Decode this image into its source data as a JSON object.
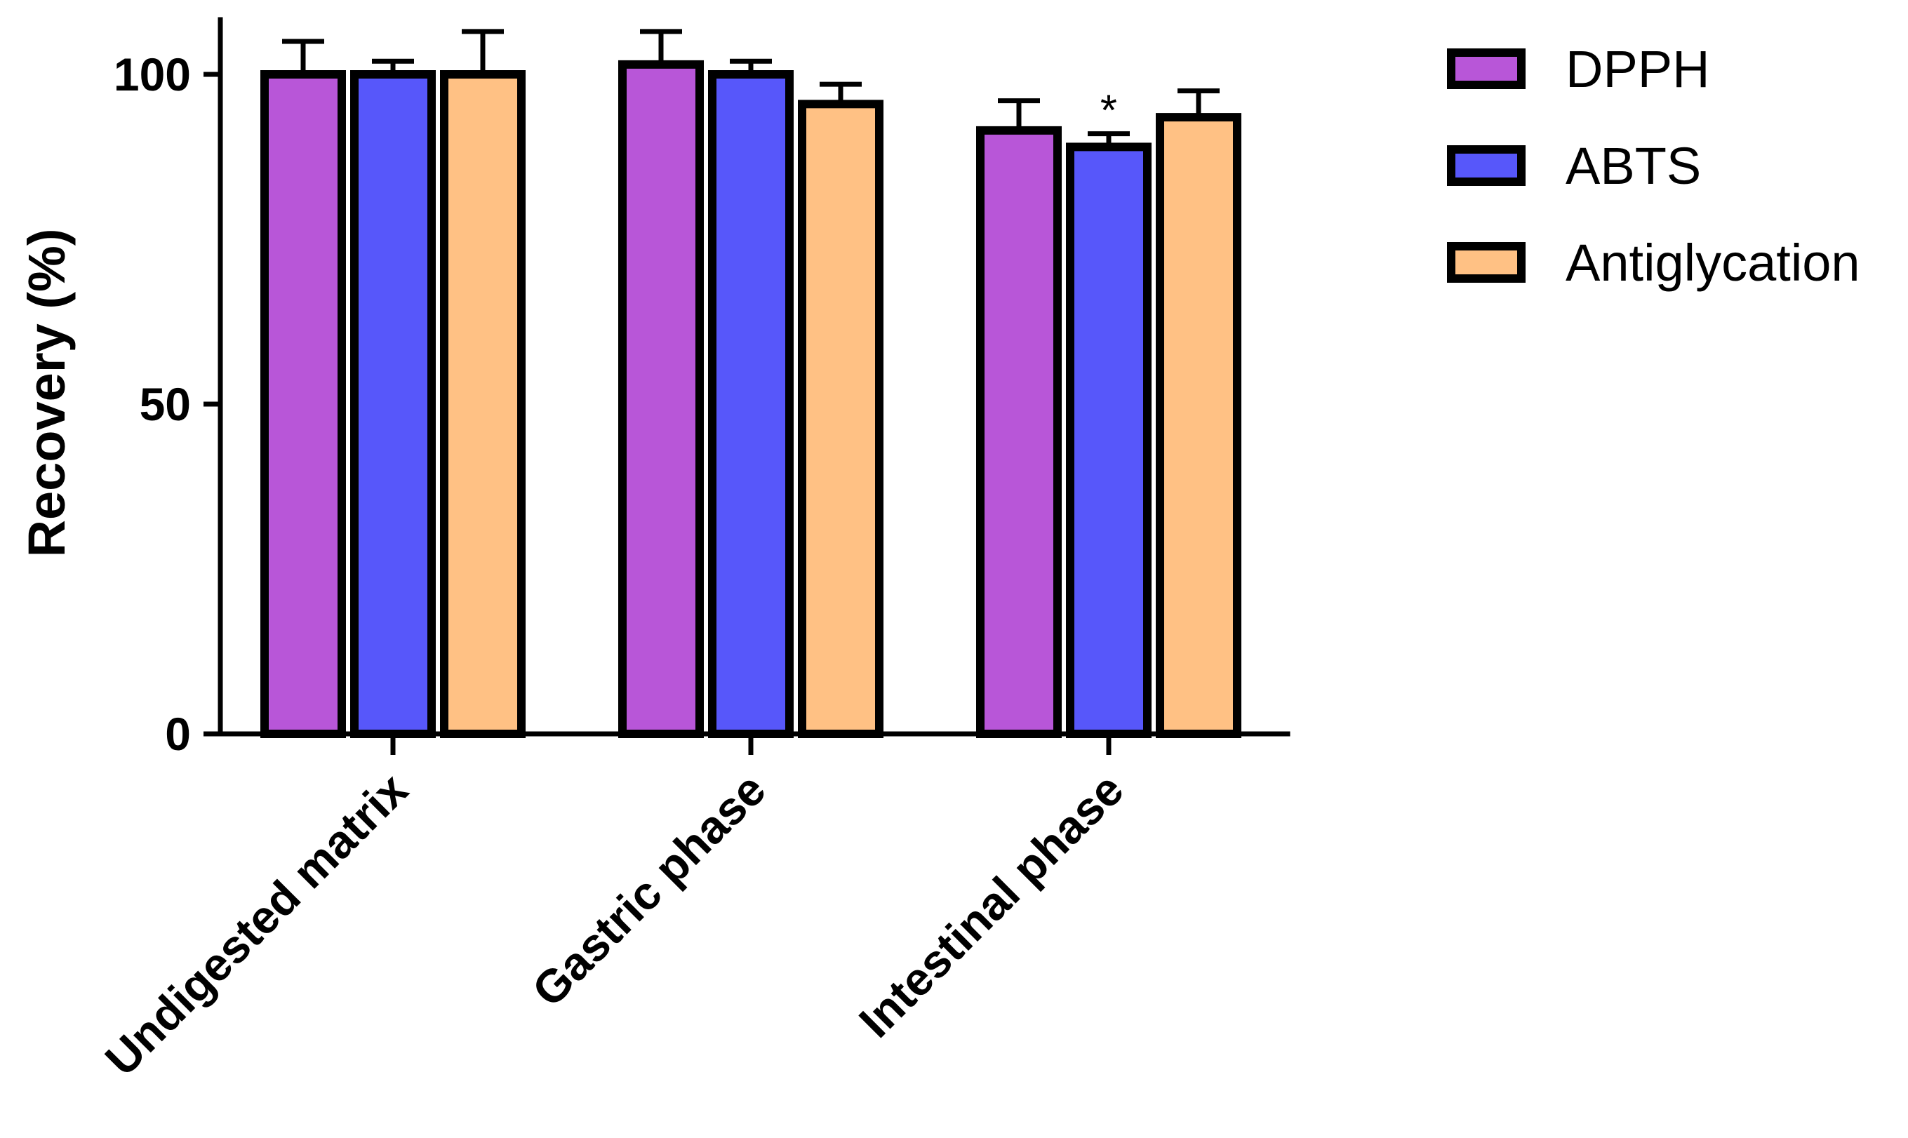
{
  "chart_data": {
    "type": "bar",
    "title": "",
    "xlabel": "",
    "ylabel": "Recovery (%)",
    "ylim": [
      0,
      100
    ],
    "yticks": [
      "0",
      "50",
      "100"
    ],
    "categories": [
      "Undigested matrix",
      "Gastric phase",
      "Intestinal phase"
    ],
    "series": [
      {
        "name": "DPPH",
        "color": "#B856D8",
        "values": [
          100,
          101.5,
          91.5
        ],
        "errors": [
          5,
          5,
          4.5
        ]
      },
      {
        "name": "ABTS",
        "color": "#5757FA",
        "values": [
          100,
          100,
          89
        ],
        "errors": [
          2,
          2,
          2
        ]
      },
      {
        "name": "Antiglycation",
        "color": "#FFC184",
        "values": [
          100,
          95.5,
          93.5
        ],
        "errors": [
          6.5,
          3,
          4
        ]
      }
    ],
    "annotations": [
      {
        "text": "*",
        "category": "Intestinal phase",
        "series": "ABTS"
      }
    ],
    "legend_position": "top-right",
    "grid": false
  }
}
